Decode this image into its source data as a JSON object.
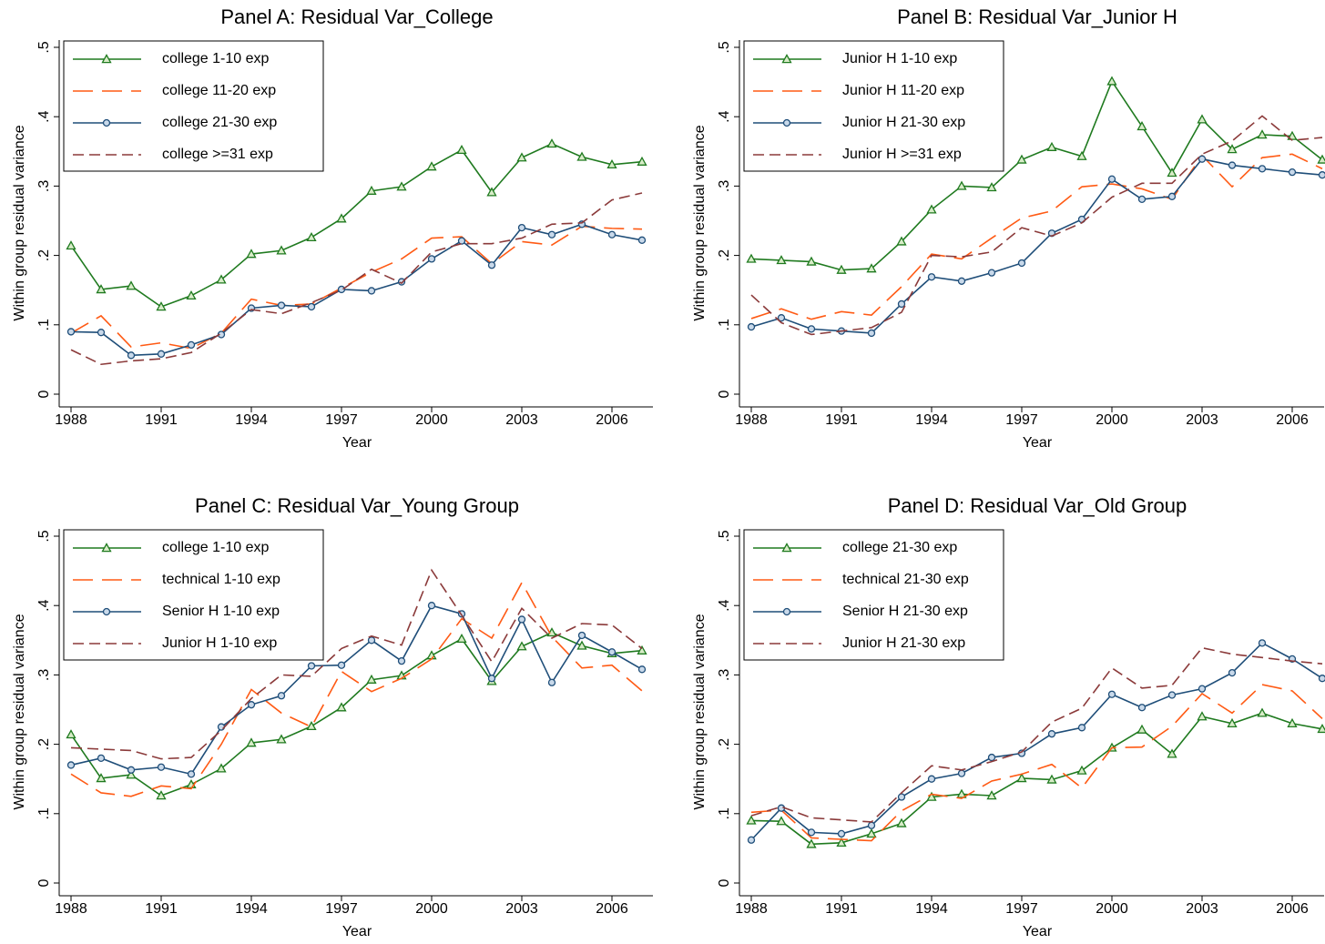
{
  "chart_data": [
    {
      "type": "line",
      "title": "Panel A: Residual Var_College",
      "x_label": "Year",
      "y_label": "Within group residual variance",
      "x": [
        1988,
        1989,
        1990,
        1991,
        1992,
        1993,
        1994,
        1995,
        1996,
        1997,
        1998,
        1999,
        2000,
        2001,
        2002,
        2003,
        2004,
        2005,
        2006,
        2007
      ],
      "xlim": [
        1988,
        2007
      ],
      "xticks": [
        1988,
        1991,
        1994,
        1997,
        2000,
        2003,
        2006
      ],
      "ylim": [
        0,
        0.5
      ],
      "yticks": [
        0,
        {
          "value": 0.1,
          "label": ".1"
        },
        {
          "value": 0.2,
          "label": ".2"
        },
        {
          "value": 0.3,
          "label": ".3"
        },
        {
          "value": 0.4,
          "label": ".4"
        },
        {
          "value": 0.5,
          "label": ".5"
        }
      ],
      "legend": "top-left",
      "series": [
        {
          "name": "college 1-10 exp",
          "color": "#1f7a1f",
          "marker": "triangle",
          "values": [
            0.214,
            0.151,
            0.156,
            0.126,
            0.142,
            0.165,
            0.202,
            0.207,
            0.226,
            0.253,
            0.293,
            0.299,
            0.328,
            0.352,
            0.291,
            0.341,
            0.361,
            0.342,
            0.331,
            0.335
          ]
        },
        {
          "name": "college 11-20 exp",
          "color": "#ff5a14",
          "dash": "long",
          "values": [
            0.088,
            0.113,
            0.068,
            0.074,
            0.066,
            0.088,
            0.137,
            0.128,
            0.13,
            0.153,
            0.176,
            0.195,
            0.225,
            0.227,
            0.188,
            0.22,
            0.215,
            0.242,
            0.239,
            0.238
          ]
        },
        {
          "name": "college 21-30 exp",
          "color": "#1f4e79",
          "marker": "circle",
          "values": [
            0.09,
            0.089,
            0.056,
            0.058,
            0.071,
            0.086,
            0.124,
            0.128,
            0.126,
            0.151,
            0.149,
            0.162,
            0.195,
            0.221,
            0.186,
            0.24,
            0.23,
            0.245,
            0.23,
            0.222
          ]
        },
        {
          "name": "college >=31 exp",
          "color": "#8b3a3a",
          "dash": "short",
          "values": [
            0.064,
            0.043,
            0.048,
            0.051,
            0.06,
            0.088,
            0.122,
            0.116,
            0.132,
            0.15,
            0.18,
            0.16,
            0.205,
            0.217,
            0.217,
            0.225,
            0.245,
            0.247,
            0.28,
            0.29
          ]
        }
      ]
    },
    {
      "type": "line",
      "title": "Panel B: Residual Var_Junior H",
      "x_label": "Year",
      "y_label": "Within group residual variance",
      "x": [
        1988,
        1989,
        1990,
        1991,
        1992,
        1993,
        1994,
        1995,
        1996,
        1997,
        1998,
        1999,
        2000,
        2001,
        2002,
        2003,
        2004,
        2005,
        2006,
        2007
      ],
      "xlim": [
        1988,
        2007
      ],
      "xticks": [
        1988,
        1991,
        1994,
        1997,
        2000,
        2003,
        2006
      ],
      "ylim": [
        0,
        0.5
      ],
      "yticks": [
        0,
        {
          "value": 0.1,
          "label": ".1"
        },
        {
          "value": 0.2,
          "label": ".2"
        },
        {
          "value": 0.3,
          "label": ".3"
        },
        {
          "value": 0.4,
          "label": ".4"
        },
        {
          "value": 0.5,
          "label": ".5"
        }
      ],
      "legend": "top-left",
      "series": [
        {
          "name": "Junior H 1-10 exp",
          "color": "#1f7a1f",
          "marker": "triangle",
          "values": [
            0.195,
            0.193,
            0.191,
            0.179,
            0.181,
            0.22,
            0.266,
            0.3,
            0.298,
            0.338,
            0.356,
            0.343,
            0.451,
            0.386,
            0.319,
            0.396,
            0.353,
            0.374,
            0.372,
            0.338
          ]
        },
        {
          "name": "Junior H 11-20 exp",
          "color": "#ff5a14",
          "dash": "long",
          "values": [
            0.109,
            0.123,
            0.108,
            0.119,
            0.114,
            0.155,
            0.202,
            0.195,
            0.225,
            0.254,
            0.264,
            0.299,
            0.303,
            0.296,
            0.281,
            0.344,
            0.299,
            0.341,
            0.346,
            0.325
          ]
        },
        {
          "name": "Junior H 21-30 exp",
          "color": "#1f4e79",
          "marker": "circle",
          "values": [
            0.097,
            0.11,
            0.094,
            0.091,
            0.088,
            0.13,
            0.169,
            0.163,
            0.175,
            0.189,
            0.232,
            0.252,
            0.31,
            0.281,
            0.285,
            0.339,
            0.33,
            0.325,
            0.32,
            0.316
          ]
        },
        {
          "name": "Junior H >=31 exp",
          "color": "#8b3a3a",
          "dash": "short",
          "values": [
            0.143,
            0.103,
            0.086,
            0.091,
            0.096,
            0.118,
            0.2,
            0.198,
            0.205,
            0.24,
            0.228,
            0.247,
            0.284,
            0.304,
            0.304,
            0.346,
            0.365,
            0.401,
            0.366,
            0.37
          ]
        }
      ]
    },
    {
      "type": "line",
      "title": "Panel C: Residual Var_Young Group",
      "x_label": "Year",
      "y_label": "Within group residual variance",
      "x": [
        1988,
        1989,
        1990,
        1991,
        1992,
        1993,
        1994,
        1995,
        1996,
        1997,
        1998,
        1999,
        2000,
        2001,
        2002,
        2003,
        2004,
        2005,
        2006,
        2007
      ],
      "xlim": [
        1988,
        2007
      ],
      "xticks": [
        1988,
        1991,
        1994,
        1997,
        2000,
        2003,
        2006
      ],
      "ylim": [
        0,
        0.5
      ],
      "yticks": [
        0,
        {
          "value": 0.1,
          "label": ".1"
        },
        {
          "value": 0.2,
          "label": ".2"
        },
        {
          "value": 0.3,
          "label": ".3"
        },
        {
          "value": 0.4,
          "label": ".4"
        },
        {
          "value": 0.5,
          "label": ".5"
        }
      ],
      "legend": "top-left",
      "series": [
        {
          "name": "college 1-10 exp",
          "color": "#1f7a1f",
          "marker": "triangle",
          "values": [
            0.214,
            0.151,
            0.156,
            0.126,
            0.142,
            0.165,
            0.202,
            0.207,
            0.226,
            0.253,
            0.293,
            0.299,
            0.328,
            0.352,
            0.291,
            0.341,
            0.361,
            0.342,
            0.331,
            0.335
          ]
        },
        {
          "name": "technical 1-10 exp",
          "color": "#ff5a14",
          "dash": "long",
          "values": [
            0.157,
            0.13,
            0.125,
            0.14,
            0.136,
            0.2,
            0.279,
            0.245,
            0.225,
            0.305,
            0.276,
            0.295,
            0.323,
            0.381,
            0.353,
            0.433,
            0.355,
            0.31,
            0.314,
            0.277
          ]
        },
        {
          "name": "Senior H 1-10 exp",
          "color": "#1f4e79",
          "marker": "circle",
          "values": [
            0.17,
            0.18,
            0.163,
            0.167,
            0.157,
            0.225,
            0.257,
            0.27,
            0.313,
            0.314,
            0.35,
            0.32,
            0.4,
            0.388,
            0.295,
            0.38,
            0.289,
            0.357,
            0.333,
            0.308
          ]
        },
        {
          "name": "Junior H 1-10 exp",
          "color": "#8b3a3a",
          "dash": "short",
          "values": [
            0.195,
            0.193,
            0.191,
            0.179,
            0.181,
            0.22,
            0.266,
            0.3,
            0.298,
            0.338,
            0.356,
            0.343,
            0.451,
            0.386,
            0.319,
            0.396,
            0.353,
            0.374,
            0.372,
            0.338
          ]
        }
      ]
    },
    {
      "type": "line",
      "title": "Panel D: Residual Var_Old Group",
      "x_label": "Year",
      "y_label": "Within group residual variance",
      "x": [
        1988,
        1989,
        1990,
        1991,
        1992,
        1993,
        1994,
        1995,
        1996,
        1997,
        1998,
        1999,
        2000,
        2001,
        2002,
        2003,
        2004,
        2005,
        2006,
        2007
      ],
      "xlim": [
        1988,
        2007
      ],
      "xticks": [
        1988,
        1991,
        1994,
        1997,
        2000,
        2003,
        2006
      ],
      "ylim": [
        0,
        0.5
      ],
      "yticks": [
        0,
        {
          "value": 0.1,
          "label": ".1"
        },
        {
          "value": 0.2,
          "label": ".2"
        },
        {
          "value": 0.3,
          "label": ".3"
        },
        {
          "value": 0.4,
          "label": ".4"
        },
        {
          "value": 0.5,
          "label": ".5"
        }
      ],
      "legend": "top-left",
      "series": [
        {
          "name": "college 21-30 exp",
          "color": "#1f7a1f",
          "marker": "triangle",
          "values": [
            0.09,
            0.089,
            0.056,
            0.058,
            0.071,
            0.086,
            0.124,
            0.128,
            0.126,
            0.151,
            0.149,
            0.162,
            0.195,
            0.221,
            0.186,
            0.24,
            0.23,
            0.245,
            0.23,
            0.222
          ]
        },
        {
          "name": "technical 21-30 exp",
          "color": "#ff5a14",
          "dash": "long",
          "values": [
            0.102,
            0.105,
            0.065,
            0.063,
            0.061,
            0.104,
            0.128,
            0.122,
            0.147,
            0.157,
            0.171,
            0.137,
            0.195,
            0.196,
            0.226,
            0.273,
            0.245,
            0.286,
            0.277,
            0.237
          ]
        },
        {
          "name": "Senior H 21-30 exp",
          "color": "#1f4e79",
          "marker": "circle",
          "values": [
            0.062,
            0.108,
            0.073,
            0.071,
            0.083,
            0.124,
            0.15,
            0.158,
            0.181,
            0.187,
            0.215,
            0.224,
            0.272,
            0.253,
            0.271,
            0.28,
            0.303,
            0.346,
            0.323,
            0.295
          ]
        },
        {
          "name": "Junior H 21-30 exp",
          "color": "#8b3a3a",
          "dash": "short",
          "values": [
            0.097,
            0.11,
            0.094,
            0.091,
            0.088,
            0.13,
            0.169,
            0.163,
            0.175,
            0.189,
            0.232,
            0.252,
            0.31,
            0.281,
            0.285,
            0.339,
            0.33,
            0.325,
            0.32,
            0.316
          ]
        }
      ]
    }
  ]
}
